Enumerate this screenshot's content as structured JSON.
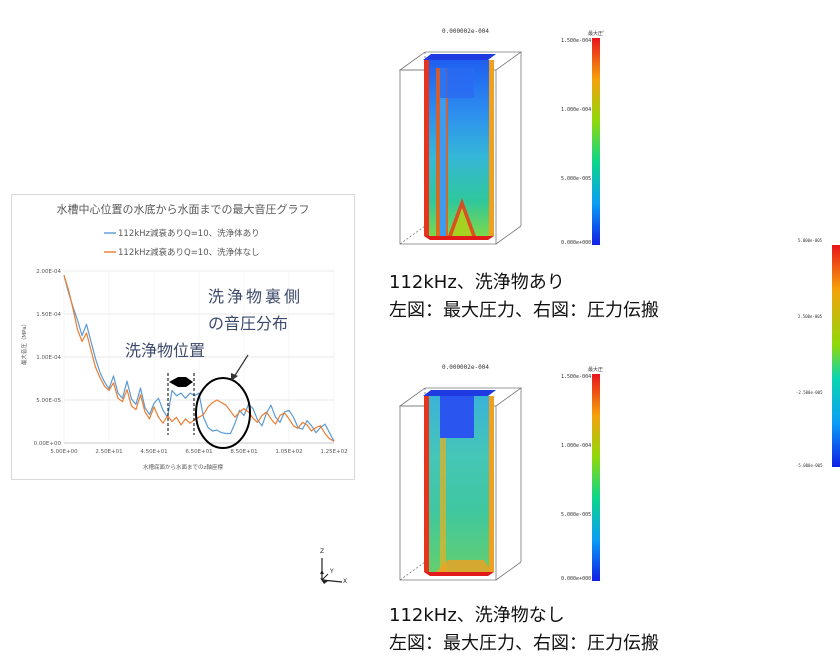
{
  "chart_data": {
    "type": "line",
    "title": "水槽中心位置の水底から水面までの最大音圧グラフ",
    "xlabel": "水槽底面から水面までのz軸座標",
    "ylabel": "最大音圧（MPa）",
    "xlim": [
      5,
      125
    ],
    "ylim": [
      0,
      0.0002
    ],
    "x_ticks": [
      "5.00E+00",
      "2.50E+01",
      "4.50E+01",
      "6.50E+01",
      "8.50E+01",
      "1.05E+02",
      "1.25E+02"
    ],
    "y_ticks": [
      "0.00E+00",
      "5.00E-05",
      "1.00E-04",
      "1.50E-04",
      "2.00E-04"
    ],
    "grid": true,
    "legend_position": "top",
    "series": [
      {
        "name": "112kHz減衰ありQ=10、洗浄体あり",
        "color": "#5b9bd5",
        "x": [
          5,
          7,
          9,
          11,
          13,
          15,
          17,
          19,
          21,
          23,
          25,
          27,
          29,
          31,
          33,
          35,
          37,
          39,
          41,
          43,
          45,
          47,
          49,
          51,
          53,
          55,
          57,
          59,
          61,
          63,
          65,
          67,
          69,
          71,
          73,
          75,
          77,
          79,
          81,
          83,
          85,
          87,
          89,
          91,
          93,
          95,
          97,
          99,
          101,
          103,
          105,
          107,
          109,
          111,
          113,
          115,
          117,
          119,
          121,
          123,
          125
        ],
        "values": [
          0.000195,
          0.000175,
          0.000158,
          0.000143,
          0.000125,
          0.000138,
          0.000118,
          9.8e-05,
          8.2e-05,
          7.1e-05,
          6.3e-05,
          7.8e-05,
          5.8e-05,
          5.2e-05,
          7.2e-05,
          5.1e-05,
          4.5e-05,
          6.4e-05,
          4.1e-05,
          3.3e-05,
          4.6e-05,
          5.2e-05,
          3.8e-05,
          3e-05,
          6.1e-05,
          5.5e-05,
          5.8e-05,
          5.2e-05,
          5.8e-05,
          5.5e-05,
          5.8e-05,
          3e-05,
          1.8e-05,
          1.4e-05,
          1.5e-05,
          1.2e-05,
          1.1e-05,
          1.1e-05,
          2.3e-05,
          3.8e-05,
          3.2e-05,
          4.5e-05,
          4e-05,
          2.7e-05,
          2e-05,
          3.5e-05,
          4.4e-05,
          3e-05,
          2.4e-05,
          3.6e-05,
          3.8e-05,
          3e-05,
          1.8e-05,
          1.6e-05,
          2.6e-05,
          2e-05,
          1.2e-05,
          1.8e-05,
          2.2e-05,
          1.2e-05,
          2e-06
        ]
      },
      {
        "name": "112kHz減衰ありQ=10、洗浄体なし",
        "color": "#ed7d31",
        "x": [
          5,
          7,
          9,
          11,
          13,
          15,
          17,
          19,
          21,
          23,
          25,
          27,
          29,
          31,
          33,
          35,
          37,
          39,
          41,
          43,
          45,
          47,
          49,
          51,
          53,
          55,
          57,
          59,
          61,
          63,
          65,
          67,
          69,
          71,
          73,
          75,
          77,
          79,
          81,
          83,
          85,
          87,
          89,
          91,
          93,
          95,
          97,
          99,
          101,
          103,
          105,
          107,
          109,
          111,
          113,
          115,
          117,
          119,
          121,
          123,
          125
        ],
        "values": [
          0.000195,
          0.000178,
          0.000156,
          0.000132,
          0.000118,
          0.000128,
          0.000108,
          8.8e-05,
          7.6e-05,
          6.6e-05,
          6.1e-05,
          7e-05,
          5.2e-05,
          4.8e-05,
          6.2e-05,
          4.3e-05,
          3.9e-05,
          5.6e-05,
          3.6e-05,
          2.8e-05,
          4.2e-05,
          3e-05,
          2.3e-05,
          3.2e-05,
          2.5e-05,
          3e-05,
          2.1e-05,
          2.8e-05,
          2.3e-05,
          2.7e-05,
          3e-05,
          3.3e-05,
          4.2e-05,
          4.7e-05,
          5e-05,
          4.7e-05,
          4.4e-05,
          3.7e-05,
          3e-05,
          3.6e-05,
          4e-05,
          3.6e-05,
          2.9e-05,
          2.4e-05,
          3.2e-05,
          3.6e-05,
          2.8e-05,
          2.2e-05,
          3.2e-05,
          3.5e-05,
          2.8e-05,
          2e-05,
          1.7e-05,
          2.4e-05,
          2.1e-05,
          1.4e-05,
          1.8e-05,
          2e-05,
          1.1e-05,
          5e-06,
          2e-06
        ]
      }
    ],
    "annotations": {
      "behind": "洗浄物裏側\nの音圧分布",
      "position": "洗浄物位置"
    }
  },
  "simulations": [
    {
      "time_label": "0.000002e-004",
      "colorbar_title": "最大圧ﾞ",
      "colorbar_ticks": [
        "1.500e-004",
        "1.000e-004",
        "5.000e-005",
        "0.000e+000"
      ],
      "caption_line1": "112kHz、洗浄物あり",
      "caption_line2": "左図：最大圧力、右図：圧力伝搬"
    },
    {
      "time_label": "0.000002e-004",
      "colorbar_title": "最大圧",
      "colorbar_ticks": [
        "1.500e-004",
        "1.000e-004",
        "5.000e-005",
        "0.000e+000"
      ],
      "caption_line1": "112kHz、洗浄物なし",
      "caption_line2": "左図：最大圧力、右図：圧力伝搬"
    }
  ],
  "edge_colorbar": {
    "ticks": [
      "5.000e-005",
      "2.500e-005",
      "-2.500e-005",
      "-5.000e-005"
    ]
  },
  "axis_triad": {
    "z": "Z",
    "y": "Y",
    "x": "X"
  },
  "colors": {
    "legend_text": "#595959",
    "title_text": "#595959",
    "annotation_text": "#3d4a6b"
  }
}
